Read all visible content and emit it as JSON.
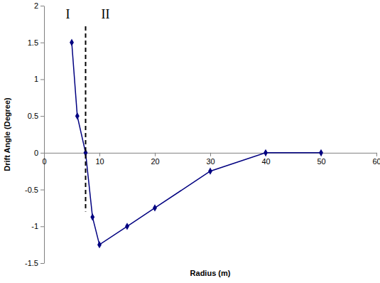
{
  "chart_data": {
    "type": "line",
    "xlabel": "Radius (m)",
    "ylabel": "Drift Angle (Degree)",
    "x": [
      5,
      6,
      7.5,
      8.75,
      10,
      15,
      20,
      30,
      40,
      50
    ],
    "values": [
      1.5,
      0.5,
      0,
      -0.875,
      -1.25,
      -1,
      -0.75,
      -0.25,
      0,
      0
    ],
    "color": "#000080",
    "marker": "diamond",
    "xlim": [
      0,
      60
    ],
    "ylim": [
      -1.5,
      2
    ],
    "xticks": [
      0,
      10,
      20,
      30,
      40,
      50,
      60
    ],
    "yticks": [
      -1.5,
      -1,
      -0.5,
      0,
      0.5,
      1,
      1.5,
      2
    ],
    "annotations": [
      {
        "text": "I"
      },
      {
        "text": "II"
      }
    ],
    "boundary_x": 7.5
  }
}
